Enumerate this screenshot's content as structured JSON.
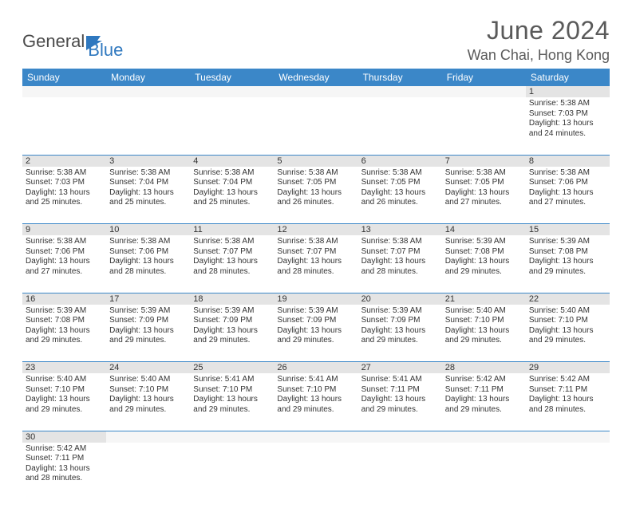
{
  "logo": {
    "text1": "General",
    "text2": "Blue",
    "color_text1": "#4a4a4a",
    "color_text2": "#2f78bf",
    "flag_color": "#2f78bf"
  },
  "title": "June 2024",
  "location": "Wan Chai, Hong Kong",
  "colors": {
    "header_bg": "#3b87c8",
    "header_text": "#ffffff",
    "daynum_bg": "#e4e4e4",
    "cell_border": "#3b87c8",
    "text": "#333333",
    "title_color": "#5a5a5a"
  },
  "day_headers": [
    "Sunday",
    "Monday",
    "Tuesday",
    "Wednesday",
    "Thursday",
    "Friday",
    "Saturday"
  ],
  "weeks": [
    {
      "nums": [
        "",
        "",
        "",
        "",
        "",
        "",
        "1"
      ],
      "cells": [
        null,
        null,
        null,
        null,
        null,
        null,
        {
          "sunrise": "5:38 AM",
          "sunset": "7:03 PM",
          "daylight": "13 hours and 24 minutes."
        }
      ]
    },
    {
      "nums": [
        "2",
        "3",
        "4",
        "5",
        "6",
        "7",
        "8"
      ],
      "cells": [
        {
          "sunrise": "5:38 AM",
          "sunset": "7:03 PM",
          "daylight": "13 hours and 25 minutes."
        },
        {
          "sunrise": "5:38 AM",
          "sunset": "7:04 PM",
          "daylight": "13 hours and 25 minutes."
        },
        {
          "sunrise": "5:38 AM",
          "sunset": "7:04 PM",
          "daylight": "13 hours and 25 minutes."
        },
        {
          "sunrise": "5:38 AM",
          "sunset": "7:05 PM",
          "daylight": "13 hours and 26 minutes."
        },
        {
          "sunrise": "5:38 AM",
          "sunset": "7:05 PM",
          "daylight": "13 hours and 26 minutes."
        },
        {
          "sunrise": "5:38 AM",
          "sunset": "7:05 PM",
          "daylight": "13 hours and 27 minutes."
        },
        {
          "sunrise": "5:38 AM",
          "sunset": "7:06 PM",
          "daylight": "13 hours and 27 minutes."
        }
      ]
    },
    {
      "nums": [
        "9",
        "10",
        "11",
        "12",
        "13",
        "14",
        "15"
      ],
      "cells": [
        {
          "sunrise": "5:38 AM",
          "sunset": "7:06 PM",
          "daylight": "13 hours and 27 minutes."
        },
        {
          "sunrise": "5:38 AM",
          "sunset": "7:06 PM",
          "daylight": "13 hours and 28 minutes."
        },
        {
          "sunrise": "5:38 AM",
          "sunset": "7:07 PM",
          "daylight": "13 hours and 28 minutes."
        },
        {
          "sunrise": "5:38 AM",
          "sunset": "7:07 PM",
          "daylight": "13 hours and 28 minutes."
        },
        {
          "sunrise": "5:38 AM",
          "sunset": "7:07 PM",
          "daylight": "13 hours and 28 minutes."
        },
        {
          "sunrise": "5:39 AM",
          "sunset": "7:08 PM",
          "daylight": "13 hours and 29 minutes."
        },
        {
          "sunrise": "5:39 AM",
          "sunset": "7:08 PM",
          "daylight": "13 hours and 29 minutes."
        }
      ]
    },
    {
      "nums": [
        "16",
        "17",
        "18",
        "19",
        "20",
        "21",
        "22"
      ],
      "cells": [
        {
          "sunrise": "5:39 AM",
          "sunset": "7:08 PM",
          "daylight": "13 hours and 29 minutes."
        },
        {
          "sunrise": "5:39 AM",
          "sunset": "7:09 PM",
          "daylight": "13 hours and 29 minutes."
        },
        {
          "sunrise": "5:39 AM",
          "sunset": "7:09 PM",
          "daylight": "13 hours and 29 minutes."
        },
        {
          "sunrise": "5:39 AM",
          "sunset": "7:09 PM",
          "daylight": "13 hours and 29 minutes."
        },
        {
          "sunrise": "5:39 AM",
          "sunset": "7:09 PM",
          "daylight": "13 hours and 29 minutes."
        },
        {
          "sunrise": "5:40 AM",
          "sunset": "7:10 PM",
          "daylight": "13 hours and 29 minutes."
        },
        {
          "sunrise": "5:40 AM",
          "sunset": "7:10 PM",
          "daylight": "13 hours and 29 minutes."
        }
      ]
    },
    {
      "nums": [
        "23",
        "24",
        "25",
        "26",
        "27",
        "28",
        "29"
      ],
      "cells": [
        {
          "sunrise": "5:40 AM",
          "sunset": "7:10 PM",
          "daylight": "13 hours and 29 minutes."
        },
        {
          "sunrise": "5:40 AM",
          "sunset": "7:10 PM",
          "daylight": "13 hours and 29 minutes."
        },
        {
          "sunrise": "5:41 AM",
          "sunset": "7:10 PM",
          "daylight": "13 hours and 29 minutes."
        },
        {
          "sunrise": "5:41 AM",
          "sunset": "7:10 PM",
          "daylight": "13 hours and 29 minutes."
        },
        {
          "sunrise": "5:41 AM",
          "sunset": "7:11 PM",
          "daylight": "13 hours and 29 minutes."
        },
        {
          "sunrise": "5:42 AM",
          "sunset": "7:11 PM",
          "daylight": "13 hours and 29 minutes."
        },
        {
          "sunrise": "5:42 AM",
          "sunset": "7:11 PM",
          "daylight": "13 hours and 28 minutes."
        }
      ]
    },
    {
      "nums": [
        "30",
        "",
        "",
        "",
        "",
        "",
        ""
      ],
      "cells": [
        {
          "sunrise": "5:42 AM",
          "sunset": "7:11 PM",
          "daylight": "13 hours and 28 minutes."
        },
        null,
        null,
        null,
        null,
        null,
        null
      ]
    }
  ],
  "labels": {
    "sunrise": "Sunrise: ",
    "sunset": "Sunset: ",
    "daylight": "Daylight: "
  }
}
